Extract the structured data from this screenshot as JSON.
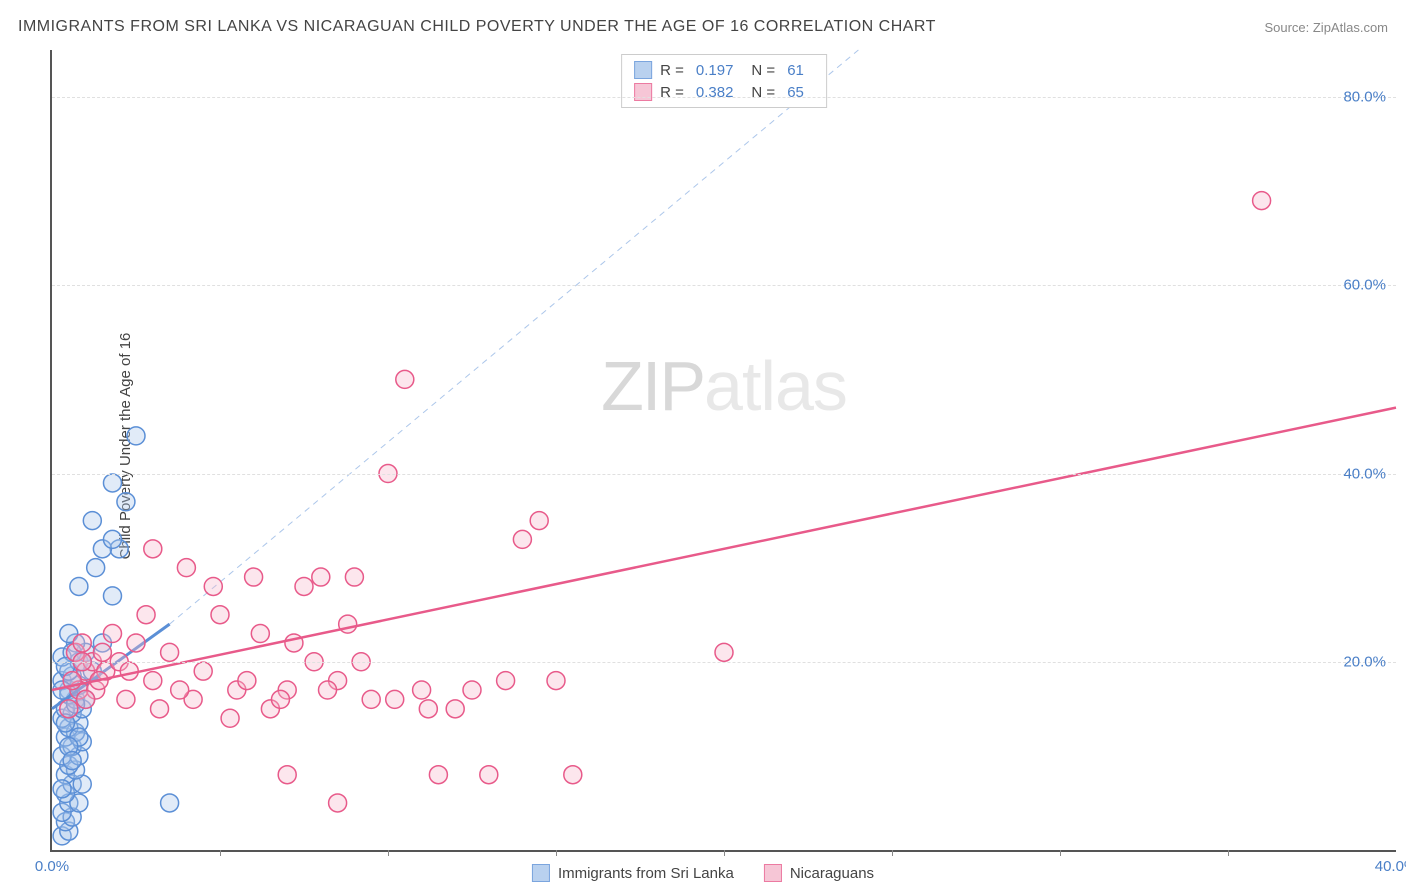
{
  "title": "IMMIGRANTS FROM SRI LANKA VS NICARAGUAN CHILD POVERTY UNDER THE AGE OF 16 CORRELATION CHART",
  "source": "Source: ZipAtlas.com",
  "ylabel": "Child Poverty Under the Age of 16",
  "watermark": {
    "left": "ZIP",
    "right": "atlas"
  },
  "chart": {
    "type": "scatter",
    "xlim": [
      0,
      40
    ],
    "ylim": [
      0,
      85
    ],
    "ytick_values": [
      20,
      40,
      60,
      80
    ],
    "ytick_labels": [
      "20.0%",
      "40.0%",
      "60.0%",
      "80.0%"
    ],
    "xtick_values": [
      0,
      40
    ],
    "xtick_labels": [
      "0.0%",
      "40.0%"
    ],
    "xtick_marks": [
      5,
      10,
      15,
      20,
      25,
      30,
      35
    ],
    "grid_color": "#e0e0e0",
    "axis_color": "#555555",
    "background_color": "#ffffff",
    "marker_radius": 9,
    "marker_stroke_width": 1.5,
    "marker_fill_opacity": 0.35,
    "tick_label_color": "#4a7fc7",
    "series": [
      {
        "name": "Immigrants from Sri Lanka",
        "color_stroke": "#5b8fd6",
        "color_fill": "#a8c6ec",
        "R": "0.197",
        "N": "61",
        "trend": {
          "x1": 0,
          "y1": 15,
          "x2": 3.5,
          "y2": 24,
          "width": 3
        },
        "trend_ext": {
          "x1": 3.5,
          "y1": 24,
          "x2": 24,
          "y2": 85,
          "dashed": true
        },
        "points": [
          [
            0.3,
            1.5
          ],
          [
            0.5,
            2
          ],
          [
            0.4,
            3
          ],
          [
            0.6,
            3.5
          ],
          [
            0.3,
            4
          ],
          [
            0.5,
            5
          ],
          [
            0.8,
            5
          ],
          [
            0.4,
            6
          ],
          [
            0.6,
            7
          ],
          [
            0.9,
            7
          ],
          [
            0.4,
            8
          ],
          [
            0.7,
            8.5
          ],
          [
            0.5,
            9
          ],
          [
            0.8,
            10
          ],
          [
            0.3,
            10
          ],
          [
            0.6,
            11
          ],
          [
            0.9,
            11.5
          ],
          [
            0.4,
            12
          ],
          [
            0.7,
            12.5
          ],
          [
            0.5,
            13
          ],
          [
            0.8,
            13.5
          ],
          [
            0.3,
            14
          ],
          [
            0.6,
            14.5
          ],
          [
            0.9,
            15
          ],
          [
            0.4,
            15
          ],
          [
            0.7,
            16
          ],
          [
            1.0,
            16
          ],
          [
            0.5,
            17
          ],
          [
            0.8,
            17.5
          ],
          [
            0.3,
            18
          ],
          [
            0.6,
            18.5
          ],
          [
            1.2,
            19
          ],
          [
            0.5,
            19
          ],
          [
            0.8,
            20
          ],
          [
            3.5,
            5
          ],
          [
            1.0,
            21
          ],
          [
            0.7,
            22
          ],
          [
            1.5,
            22
          ],
          [
            0.5,
            23
          ],
          [
            1.8,
            27
          ],
          [
            0.8,
            28
          ],
          [
            1.3,
            30
          ],
          [
            2.0,
            32
          ],
          [
            1.5,
            32
          ],
          [
            1.8,
            33
          ],
          [
            1.2,
            35
          ],
          [
            2.2,
            37
          ],
          [
            1.8,
            39
          ],
          [
            2.5,
            44
          ],
          [
            0.3,
            20.5
          ],
          [
            0.6,
            21
          ],
          [
            0.4,
            19.5
          ],
          [
            0.9,
            20
          ],
          [
            0.5,
            16.5
          ],
          [
            0.3,
            17
          ],
          [
            0.7,
            15.5
          ],
          [
            0.4,
            13.5
          ],
          [
            0.8,
            12
          ],
          [
            0.5,
            11
          ],
          [
            0.6,
            9.5
          ],
          [
            0.3,
            6.5
          ]
        ]
      },
      {
        "name": "Nicaraguans",
        "color_stroke": "#e85a8a",
        "color_fill": "#f5b8cc",
        "R": "0.382",
        "N": "65",
        "trend": {
          "x1": 0,
          "y1": 17,
          "x2": 40,
          "y2": 47,
          "width": 2.5
        },
        "points": [
          [
            0.5,
            15
          ],
          [
            0.8,
            17
          ],
          [
            1.0,
            19
          ],
          [
            1.2,
            20
          ],
          [
            0.7,
            21
          ],
          [
            1.5,
            21
          ],
          [
            0.9,
            22
          ],
          [
            1.3,
            17
          ],
          [
            1.6,
            19
          ],
          [
            2.0,
            20
          ],
          [
            2.5,
            22
          ],
          [
            3.0,
            18
          ],
          [
            3.5,
            21
          ],
          [
            4.0,
            30
          ],
          [
            4.5,
            19
          ],
          [
            5.0,
            25
          ],
          [
            5.5,
            17
          ],
          [
            6.0,
            29
          ],
          [
            3.0,
            32
          ],
          [
            6.5,
            15
          ],
          [
            7.0,
            8
          ],
          [
            7.5,
            28
          ],
          [
            8.0,
            29
          ],
          [
            8.5,
            5
          ],
          [
            7.0,
            17
          ],
          [
            8.5,
            18
          ],
          [
            9.0,
            29
          ],
          [
            9.5,
            16
          ],
          [
            10.0,
            40
          ],
          [
            10.5,
            50
          ],
          [
            11.0,
            17
          ],
          [
            11.5,
            8
          ],
          [
            12.0,
            15
          ],
          [
            12.5,
            17
          ],
          [
            13.0,
            8
          ],
          [
            13.5,
            18
          ],
          [
            14.0,
            33
          ],
          [
            14.5,
            35
          ],
          [
            15.0,
            18
          ],
          [
            15.5,
            8
          ],
          [
            20.0,
            21
          ],
          [
            36.0,
            69
          ],
          [
            4.2,
            16
          ],
          [
            5.3,
            14
          ],
          [
            6.2,
            23
          ],
          [
            7.8,
            20
          ],
          [
            2.2,
            16
          ],
          [
            3.8,
            17
          ],
          [
            1.8,
            23
          ],
          [
            2.8,
            25
          ],
          [
            4.8,
            28
          ],
          [
            6.8,
            16
          ],
          [
            8.2,
            17
          ],
          [
            9.2,
            20
          ],
          [
            10.2,
            16
          ],
          [
            11.2,
            15
          ],
          [
            3.2,
            15
          ],
          [
            5.8,
            18
          ],
          [
            7.2,
            22
          ],
          [
            8.8,
            24
          ],
          [
            1.0,
            16
          ],
          [
            1.4,
            18
          ],
          [
            2.3,
            19
          ],
          [
            0.6,
            18
          ],
          [
            0.9,
            20
          ]
        ]
      }
    ]
  },
  "legend_top": {
    "R_label": "R =",
    "N_label": "N ="
  },
  "legend_bottom": {
    "items": [
      "Immigrants from Sri Lanka",
      "Nicaraguans"
    ]
  }
}
